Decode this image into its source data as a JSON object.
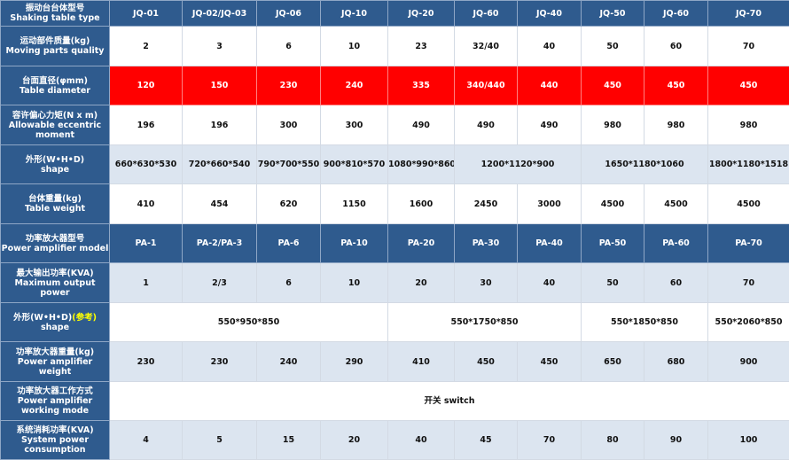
{
  "colors": {
    "header_blue": "#2f5b8e",
    "light_row": "#dce5f0",
    "highlight_red": "#ff0000",
    "note_yellow": "#ffff00"
  },
  "rows": [
    {
      "style": "blue",
      "label_cn": "振动台台体型号",
      "label_en": "Shaking table type",
      "cells": [
        {
          "text": "JQ-01"
        },
        {
          "text": "JQ-02/JQ-03"
        },
        {
          "text": "JQ-06"
        },
        {
          "text": "JQ-10"
        },
        {
          "text": "JQ-20"
        },
        {
          "text": "JQ-60"
        },
        {
          "text": "JQ-40"
        },
        {
          "text": "JQ-50"
        },
        {
          "text": "JQ-60"
        },
        {
          "text": "JQ-70"
        }
      ]
    },
    {
      "style": "white",
      "label_cn": "运动部件质量(kg)",
      "label_en": "Moving parts quality",
      "cells": [
        {
          "text": "2"
        },
        {
          "text": "3"
        },
        {
          "text": "6"
        },
        {
          "text": "10"
        },
        {
          "text": "23"
        },
        {
          "text": "32/40"
        },
        {
          "text": "40"
        },
        {
          "text": "50"
        },
        {
          "text": "60"
        },
        {
          "text": "70"
        }
      ]
    },
    {
      "style": "red",
      "label_cn": "台面直径(φmm)",
      "label_en": "Table diameter",
      "cells": [
        {
          "text": "120"
        },
        {
          "text": "150"
        },
        {
          "text": "230"
        },
        {
          "text": "240"
        },
        {
          "text": "335"
        },
        {
          "text": "340/440"
        },
        {
          "text": "440"
        },
        {
          "text": "450"
        },
        {
          "text": "450"
        },
        {
          "text": "450"
        }
      ]
    },
    {
      "style": "white",
      "label_cn": "容许偏心力矩(N x m)",
      "label_en": "Allowable eccentric moment",
      "cells": [
        {
          "text": "196"
        },
        {
          "text": "196"
        },
        {
          "text": "300"
        },
        {
          "text": "300"
        },
        {
          "text": "490"
        },
        {
          "text": "490"
        },
        {
          "text": "490"
        },
        {
          "text": "980"
        },
        {
          "text": "980"
        },
        {
          "text": "980"
        }
      ]
    },
    {
      "style": "light",
      "label_cn": "外形(W•H•D)",
      "label_en": "shape",
      "cells": [
        {
          "text": "660*630*530"
        },
        {
          "text": "720*660*540"
        },
        {
          "text": "790*700*550"
        },
        {
          "text": "900*810*570"
        },
        {
          "text": "1080*990*860"
        },
        {
          "text": "1200*1120*900",
          "span": 2
        },
        {
          "text": "1650*1180*1060",
          "span": 2
        },
        {
          "text": "1800*1180*1518"
        }
      ]
    },
    {
      "style": "white",
      "label_cn": "台体重量(kg)",
      "label_en": "Table weight",
      "cells": [
        {
          "text": "410"
        },
        {
          "text": "454"
        },
        {
          "text": "620"
        },
        {
          "text": "1150"
        },
        {
          "text": "1600"
        },
        {
          "text": "2450"
        },
        {
          "text": "3000"
        },
        {
          "text": "4500"
        },
        {
          "text": "4500"
        },
        {
          "text": "4500"
        }
      ]
    },
    {
      "style": "blue",
      "label_cn": "功率放大器型号",
      "label_en": "Power amplifier model",
      "cells": [
        {
          "text": "PA-1"
        },
        {
          "text": "PA-2/PA-3"
        },
        {
          "text": "PA-6"
        },
        {
          "text": "PA-10"
        },
        {
          "text": "PA-20"
        },
        {
          "text": "PA-30"
        },
        {
          "text": "PA-40"
        },
        {
          "text": "PA-50"
        },
        {
          "text": "PA-60"
        },
        {
          "text": "PA-70"
        }
      ]
    },
    {
      "style": "light",
      "label_cn": "最大输出功率(KVA)",
      "label_en": "Maximum output power",
      "cells": [
        {
          "text": "1"
        },
        {
          "text": "2/3"
        },
        {
          "text": "6"
        },
        {
          "text": "10"
        },
        {
          "text": "20"
        },
        {
          "text": "30"
        },
        {
          "text": "40"
        },
        {
          "text": "50"
        },
        {
          "text": "60"
        },
        {
          "text": "70"
        }
      ]
    },
    {
      "style": "white",
      "label_cn": "外形(W•H•D)",
      "label_note": "(参考)",
      "label_en": "shape",
      "cells": [
        {
          "text": "550*950*850",
          "span": 4
        },
        {
          "text": "550*1750*850",
          "span": 3
        },
        {
          "text": "550*1850*850",
          "span": 2
        },
        {
          "text": "550*2060*850"
        }
      ]
    },
    {
      "style": "light",
      "label_cn": "功率放大器重量(kg)",
      "label_en": "Power amplifier weight",
      "cells": [
        {
          "text": "230"
        },
        {
          "text": "230"
        },
        {
          "text": "240"
        },
        {
          "text": "290"
        },
        {
          "text": "410"
        },
        {
          "text": "450"
        },
        {
          "text": "450"
        },
        {
          "text": "650"
        },
        {
          "text": "680"
        },
        {
          "text": "900"
        }
      ]
    },
    {
      "style": "white",
      "label_cn": "功率放大器工作方式",
      "label_en": "Power amplifier working mode",
      "cells": [
        {
          "text": "开关  switch",
          "span": 10
        }
      ]
    },
    {
      "style": "light",
      "label_cn": "系统消耗功率(KVA)",
      "label_en": "System power consumption",
      "cells": [
        {
          "text": "4"
        },
        {
          "text": "5"
        },
        {
          "text": "15"
        },
        {
          "text": "20"
        },
        {
          "text": "40"
        },
        {
          "text": "45"
        },
        {
          "text": "70"
        },
        {
          "text": "80"
        },
        {
          "text": "90"
        },
        {
          "text": "100"
        }
      ]
    }
  ]
}
